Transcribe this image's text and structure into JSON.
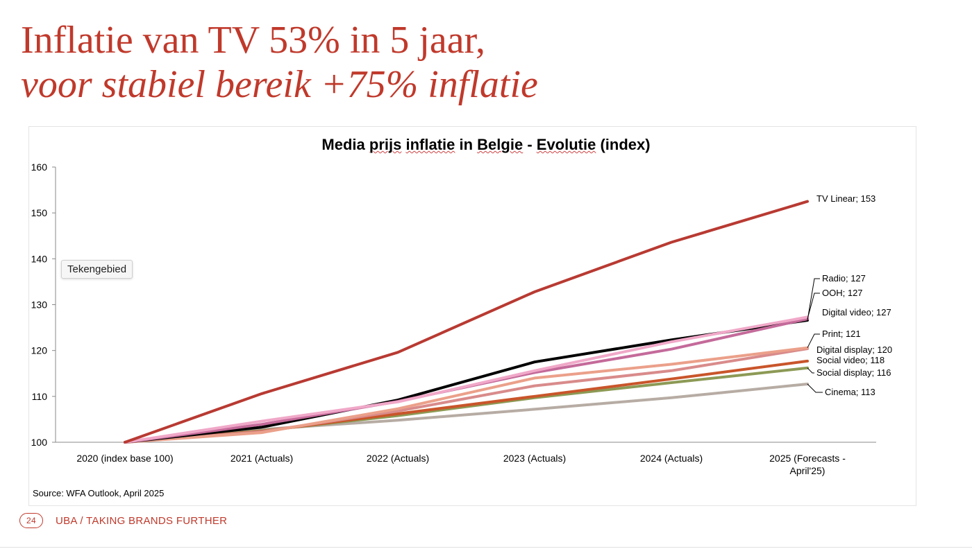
{
  "slide": {
    "title_line1": "Inflatie van TV 53% in 5 jaar,",
    "title_line2": "voor stabiel bereik +75% inflatie",
    "source": "Source: WFA Outlook, April 2025",
    "page_number": "24",
    "footer": "UBA / TAKING BRANDS FURTHER",
    "tooltip": "Tekengebied",
    "title_color": "#c0392b"
  },
  "chart_data": {
    "type": "line",
    "title_parts": [
      "Media ",
      "prijs",
      " ",
      "inflatie",
      " in ",
      "Belgie",
      " - ",
      "Evolutie",
      " (index)"
    ],
    "categories": [
      "2020 (index base 100)",
      "2021 (Actuals)",
      "2022 (Actuals)",
      "2023 (Actuals)",
      "2024 (Actuals)",
      "2025 (Forecasts - April'25)"
    ],
    "category_lines": [
      [
        "2020 (index base 100)"
      ],
      [
        "2021 (Actuals)"
      ],
      [
        "2022 (Actuals)"
      ],
      [
        "2023 (Actuals)"
      ],
      [
        "2024 (Actuals)"
      ],
      [
        "2025 (Forecasts -",
        "April'25)"
      ]
    ],
    "ylim": [
      100,
      160
    ],
    "yticks": [
      100,
      110,
      120,
      130,
      140,
      150,
      160
    ],
    "series": [
      {
        "name": "Cinema",
        "label": "Cinema; 113",
        "color": "#b7aca4",
        "values": [
          100,
          102.8,
          104.8,
          107.2,
          109.7,
          112.7
        ]
      },
      {
        "name": "Social display",
        "label": "Social display; 116",
        "color": "#8c9a55",
        "values": [
          100,
          102.5,
          105.8,
          109.7,
          113.0,
          116.2
        ]
      },
      {
        "name": "Social video",
        "label": "Social video; 118",
        "color": "#c9552a",
        "values": [
          100,
          102.4,
          106.2,
          110.0,
          113.8,
          117.7
        ]
      },
      {
        "name": "Digital display",
        "label": "Digital display; 120",
        "color": "#d98b8b",
        "values": [
          100,
          102.3,
          106.8,
          112.3,
          115.6,
          120.4
        ]
      },
      {
        "name": "Print",
        "label": "Print; 121",
        "color": "#eba08a",
        "values": [
          100,
          102.1,
          107.3,
          114.0,
          117.0,
          120.6
        ]
      },
      {
        "name": "Radio",
        "label": "Radio; 127",
        "color": "#000000",
        "values": [
          100,
          103.3,
          109.2,
          117.5,
          122.3,
          126.6
        ]
      },
      {
        "name": "OOH",
        "label": "OOH; 127",
        "color": "#c46a9a",
        "values": [
          100,
          103.9,
          108.9,
          115.2,
          120.3,
          126.9
        ]
      },
      {
        "name": "Digital video",
        "label": "Digital video; 127",
        "color": "#f0a8c8",
        "values": [
          100,
          104.6,
          108.8,
          115.6,
          121.9,
          127.3
        ]
      },
      {
        "name": "TV Linear",
        "label": "TV Linear; 153",
        "color": "#b83a32",
        "values": [
          100,
          110.6,
          119.6,
          132.8,
          143.6,
          152.5
        ]
      }
    ],
    "legend": "direct labels at line ends (right)",
    "grid": false
  }
}
